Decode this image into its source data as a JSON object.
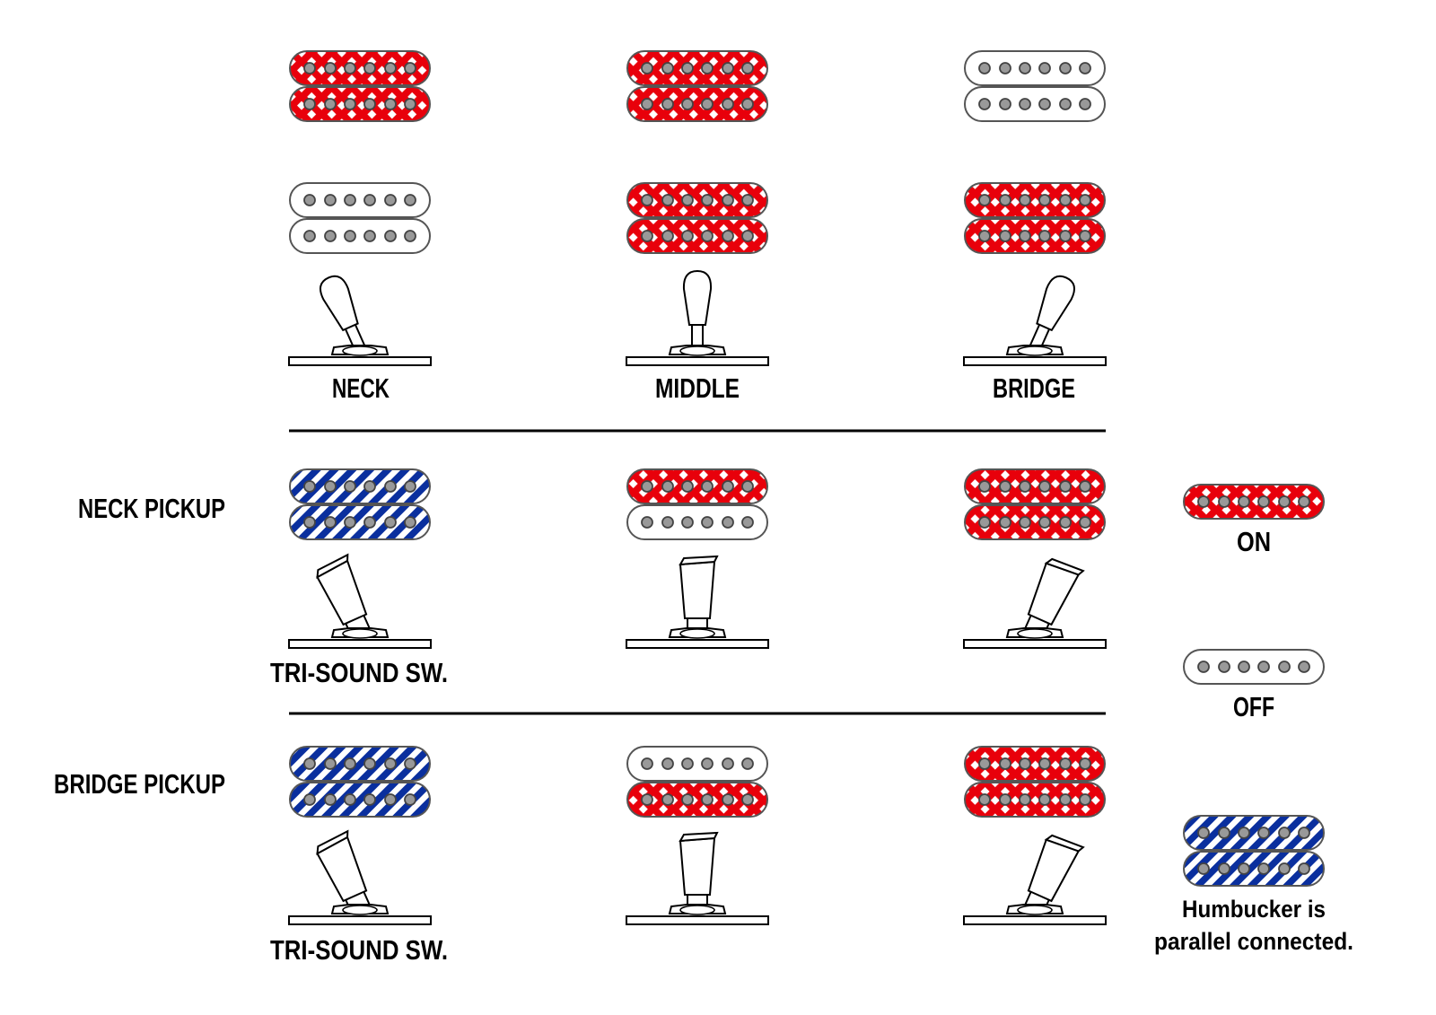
{
  "colors": {
    "on": "#e8000b",
    "parallel": "#0a2f9e",
    "off": "#ffffff",
    "pole": "#999999",
    "outline": "#555555"
  },
  "selector_row": {
    "positions": [
      {
        "label": "NECK",
        "switch_tilt": "left",
        "neck_humbucker": [
          "on",
          "on"
        ],
        "bridge_humbucker": [
          "off",
          "off"
        ]
      },
      {
        "label": "MIDDLE",
        "switch_tilt": "center",
        "neck_humbucker": [
          "on",
          "on"
        ],
        "bridge_humbucker": [
          "on",
          "on"
        ]
      },
      {
        "label": "BRIDGE",
        "switch_tilt": "right",
        "neck_humbucker": [
          "off",
          "off"
        ],
        "bridge_humbucker": [
          "on",
          "on"
        ]
      }
    ]
  },
  "neck_pickup_row": {
    "title": "NECK PICKUP",
    "switch_label": "TRI-SOUND SW.",
    "positions": [
      {
        "switch_tilt": "left",
        "coils": [
          "parallel",
          "parallel"
        ]
      },
      {
        "switch_tilt": "center",
        "coils": [
          "on",
          "off"
        ]
      },
      {
        "switch_tilt": "right",
        "coils": [
          "on",
          "on"
        ]
      }
    ]
  },
  "bridge_pickup_row": {
    "title": "BRIDGE PICKUP",
    "switch_label": "TRI-SOUND SW.",
    "positions": [
      {
        "switch_tilt": "left",
        "coils": [
          "parallel",
          "parallel"
        ]
      },
      {
        "switch_tilt": "center",
        "coils": [
          "off",
          "on"
        ]
      },
      {
        "switch_tilt": "right",
        "coils": [
          "on",
          "on"
        ]
      }
    ]
  },
  "legend": {
    "on_label": "ON",
    "off_label": "OFF",
    "parallel_line1": "Humbucker is",
    "parallel_line2": "parallel connected."
  }
}
